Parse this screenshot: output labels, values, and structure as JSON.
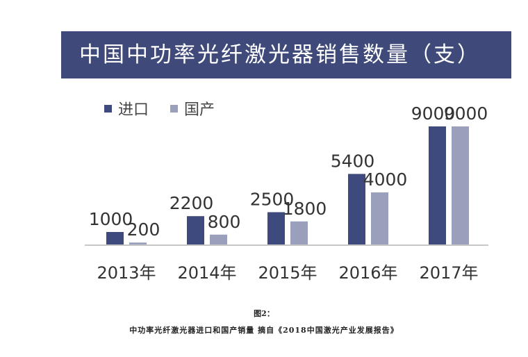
{
  "colors": {
    "title_bg": "#3f4a7a",
    "import": "#3e4a7d",
    "domestic": "#9aa0bb",
    "axis": "#c8c8c8",
    "text": "#333333"
  },
  "caption": {
    "label": "图2：",
    "text": "中功率光纤激光器进口和国产销量  摘自《2018中国激光产业发展报告》"
  },
  "chart_data": {
    "type": "bar",
    "title": "中国中功率光纤激光器销售数量（支）",
    "categories": [
      "2013年",
      "2014年",
      "2015年",
      "2016年",
      "2017年"
    ],
    "series": [
      {
        "name": "进口",
        "values": [
          1000,
          2200,
          2500,
          5400,
          9000
        ]
      },
      {
        "name": "国产",
        "values": [
          200,
          800,
          1800,
          4000,
          9000
        ]
      }
    ],
    "data_labels": [
      [
        "1000",
        "2200",
        "2500",
        "5400",
        "9000"
      ],
      [
        "200",
        "800",
        "1800",
        "4000",
        "9000"
      ]
    ],
    "ylim": [
      0,
      9000
    ],
    "grid": false,
    "legend": "top-left"
  }
}
